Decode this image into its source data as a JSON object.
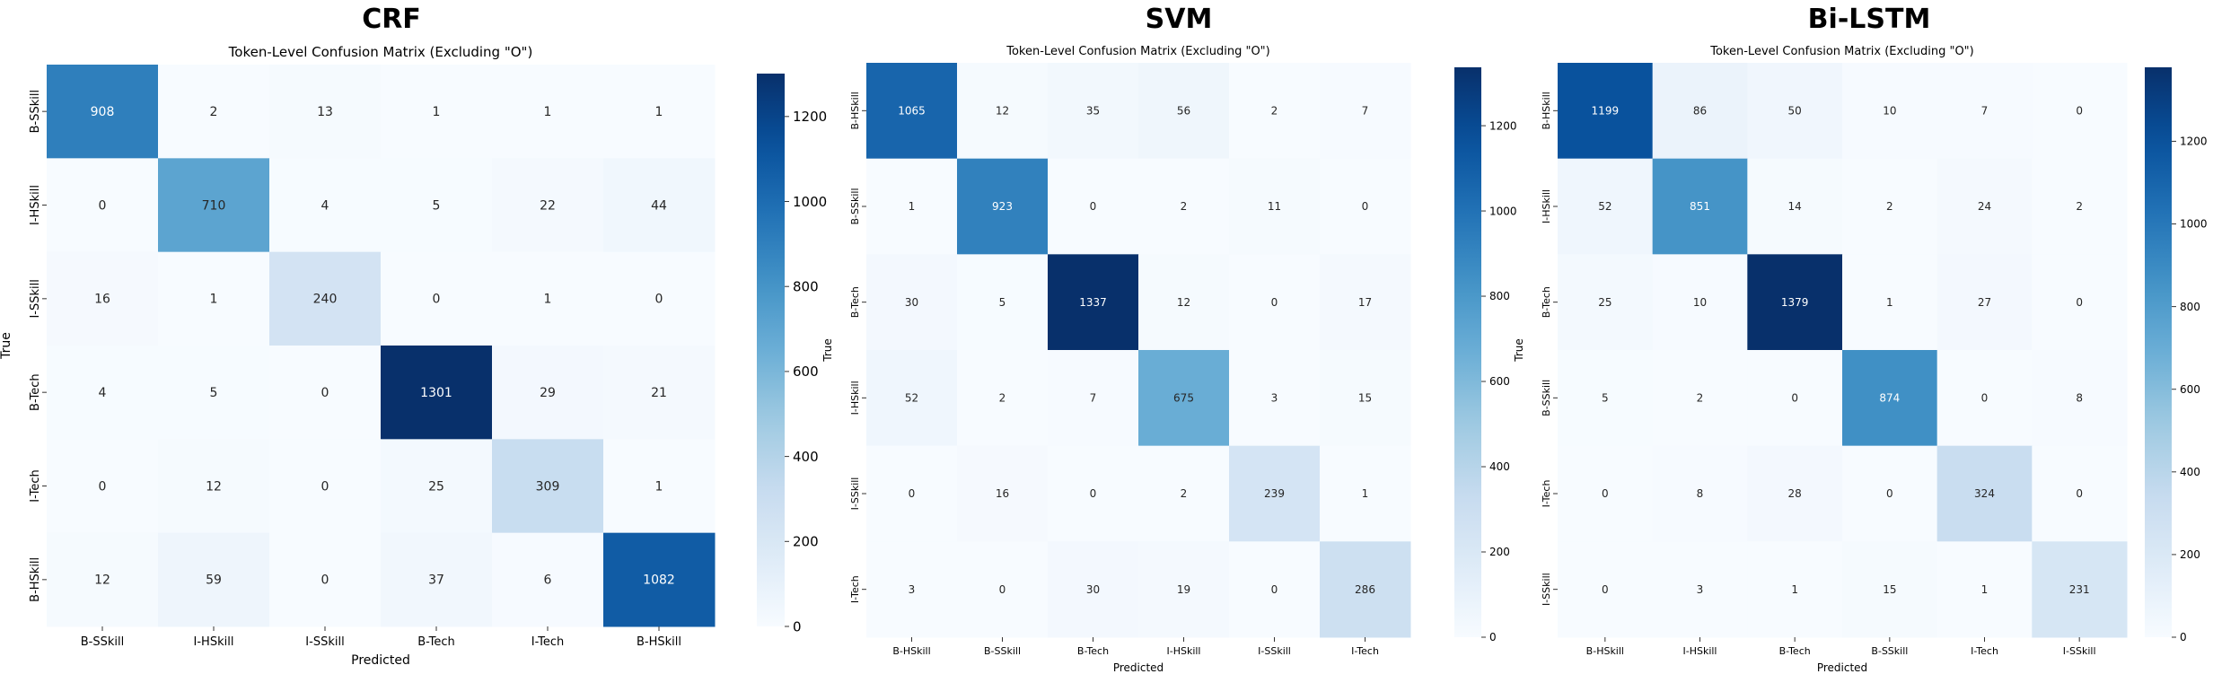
{
  "titles": [
    "CRF",
    "SVM",
    "Bi-LSTM"
  ],
  "chart_data": [
    {
      "type": "heatmap",
      "name": "CRF",
      "title": "Token-Level Confusion Matrix (Excluding \"O\")",
      "xlabel": "Predicted",
      "ylabel": "True",
      "x_labels": [
        "B-SSkill",
        "I-HSkill",
        "I-SSkill",
        "B-Tech",
        "I-Tech",
        "B-HSkill"
      ],
      "y_labels": [
        "B-SSkill",
        "I-HSkill",
        "I-SSkill",
        "B-Tech",
        "I-Tech",
        "B-HSkill"
      ],
      "values": [
        [
          908,
          2,
          13,
          1,
          1,
          1
        ],
        [
          0,
          710,
          4,
          5,
          22,
          44
        ],
        [
          16,
          1,
          240,
          0,
          1,
          0
        ],
        [
          4,
          5,
          0,
          1301,
          29,
          21
        ],
        [
          0,
          12,
          0,
          25,
          309,
          1
        ],
        [
          12,
          59,
          0,
          37,
          6,
          1082
        ]
      ],
      "colorbar_ticks": [
        0,
        200,
        400,
        600,
        800,
        1000,
        1200
      ],
      "vmin": 0,
      "vmax": 1301,
      "colormap": "Blues"
    },
    {
      "type": "heatmap",
      "name": "SVM",
      "title": "Token-Level Confusion Matrix (Excluding \"O\")",
      "xlabel": "Predicted",
      "ylabel": "True",
      "x_labels": [
        "B-HSkill",
        "B-SSkill",
        "B-Tech",
        "I-HSkill",
        "I-SSkill",
        "I-Tech"
      ],
      "y_labels": [
        "B-HSkill",
        "B-SSkill",
        "B-Tech",
        "I-HSkill",
        "I-SSkill",
        "I-Tech"
      ],
      "values": [
        [
          1065,
          12,
          35,
          56,
          2,
          7
        ],
        [
          1,
          923,
          0,
          2,
          11,
          0
        ],
        [
          30,
          5,
          1337,
          12,
          0,
          17
        ],
        [
          52,
          2,
          7,
          675,
          3,
          15
        ],
        [
          0,
          16,
          0,
          2,
          239,
          1
        ],
        [
          3,
          0,
          30,
          19,
          0,
          286
        ]
      ],
      "colorbar_ticks": [
        0,
        200,
        400,
        600,
        800,
        1000,
        1200
      ],
      "vmin": 0,
      "vmax": 1337,
      "colormap": "Blues"
    },
    {
      "type": "heatmap",
      "name": "Bi-LSTM",
      "title": "Token-Level Confusion Matrix (Excluding \"O\")",
      "xlabel": "Predicted",
      "ylabel": "True",
      "x_labels": [
        "B-HSkill",
        "I-HSkill",
        "B-Tech",
        "B-SSkill",
        "I-Tech",
        "I-SSkill"
      ],
      "y_labels": [
        "B-HSkill",
        "I-HSkill",
        "B-Tech",
        "B-SSkill",
        "I-Tech",
        "I-SSkill"
      ],
      "values": [
        [
          1199,
          86,
          50,
          10,
          7,
          0
        ],
        [
          52,
          851,
          14,
          2,
          24,
          2
        ],
        [
          25,
          10,
          1379,
          1,
          27,
          0
        ],
        [
          5,
          2,
          0,
          874,
          0,
          8
        ],
        [
          0,
          8,
          28,
          0,
          324,
          0
        ],
        [
          0,
          3,
          1,
          15,
          1,
          231
        ]
      ],
      "colorbar_ticks": [
        0,
        200,
        400,
        600,
        800,
        1000,
        1200
      ],
      "vmin": 0,
      "vmax": 1379,
      "colormap": "Blues"
    }
  ]
}
